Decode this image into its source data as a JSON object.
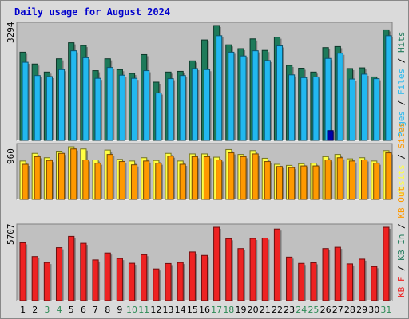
{
  "title": "Daily usage for August 2024",
  "colors": {
    "pages": "#1e7a5a",
    "files": "#22b8f0",
    "hits": "#1e7a5a",
    "visits": "#ffff44",
    "sites": "#ff9900",
    "kbin": "#1e7a5a",
    "kbout": "#ff9900",
    "kbf": "#ee2222",
    "weekend_label": "#2e8b57",
    "weekday_label": "#000000",
    "plot_bg": "#c0c0c0",
    "frame_bg": "#dadada",
    "title": "#0000cc"
  },
  "chart_data": [
    {
      "type": "bar",
      "name": "hits-files-pages",
      "max_label": "3294",
      "ylim": [
        0,
        3294
      ],
      "legend": [
        {
          "text": "Pages",
          "color": "#22b8f0"
        },
        {
          "text": " / ",
          "color": "#000000"
        },
        {
          "text": "Files",
          "color": "#22b8f0"
        },
        {
          "text": " / ",
          "color": "#000000"
        },
        {
          "text": "Hits",
          "color": "#1e7a5a"
        }
      ],
      "series": [
        {
          "name": "Hits",
          "values": [
            2530,
            2190,
            1960,
            2340,
            2800,
            2720,
            2000,
            2340,
            2030,
            1920,
            2460,
            1670,
            1960,
            1980,
            2280,
            2880,
            3294,
            2740,
            2630,
            2910,
            2580,
            2960,
            2150,
            2070,
            1960,
            2660,
            2690,
            2060,
            2080,
            1820,
            3170
          ]
        },
        {
          "name": "Files",
          "values": [
            2240,
            1860,
            1830,
            2030,
            2570,
            2370,
            1780,
            2090,
            1870,
            1780,
            2000,
            1360,
            1770,
            1860,
            2060,
            2030,
            3000,
            2530,
            2420,
            2570,
            2290,
            2710,
            1880,
            1800,
            1820,
            2350,
            2500,
            1760,
            1900,
            1770,
            3000
          ]
        },
        {
          "name": "Pages",
          "values": [
            0,
            0,
            0,
            0,
            0,
            0,
            0,
            0,
            0,
            0,
            0,
            0,
            0,
            0,
            0,
            0,
            0,
            0,
            0,
            0,
            0,
            0,
            0,
            0,
            0,
            280,
            0,
            0,
            0,
            0,
            0
          ]
        }
      ]
    },
    {
      "type": "bar",
      "name": "visits-sites",
      "max_label": "960",
      "ylim": [
        0,
        960
      ],
      "legend": [
        {
          "text": "Visits",
          "color": "#ffff44"
        },
        {
          "text": " / ",
          "color": "#000000"
        },
        {
          "text": "Sites",
          "color": "#ff9900"
        }
      ],
      "series": [
        {
          "name": "Visits",
          "values": [
            700,
            840,
            760,
            880,
            960,
            920,
            720,
            900,
            730,
            700,
            760,
            710,
            840,
            700,
            830,
            830,
            770,
            910,
            820,
            890,
            750,
            640,
            620,
            650,
            660,
            780,
            820,
            740,
            760,
            700,
            890
          ]
        },
        {
          "name": "Sites",
          "values": [
            640,
            780,
            710,
            840,
            920,
            720,
            660,
            820,
            690,
            630,
            700,
            660,
            790,
            640,
            780,
            780,
            720,
            850,
            780,
            830,
            690,
            600,
            580,
            610,
            610,
            720,
            760,
            700,
            720,
            660,
            850
          ]
        }
      ]
    },
    {
      "type": "bar",
      "name": "kbf-kbin-kbout",
      "max_label": "5707",
      "ylim": [
        0,
        5707
      ],
      "legend": [
        {
          "text": "KB F",
          "color": "#ee2222"
        },
        {
          "text": " / ",
          "color": "#000000"
        },
        {
          "text": "KB In",
          "color": "#1e7a5a"
        },
        {
          "text": " / ",
          "color": "#000000"
        },
        {
          "text": "KB Out",
          "color": "#ff9900"
        }
      ],
      "series": [
        {
          "name": "KB F",
          "values": [
            4500,
            3430,
            2970,
            4120,
            5000,
            4460,
            3170,
            3710,
            3280,
            2910,
            3580,
            2470,
            2890,
            2970,
            3790,
            3520,
            5707,
            4820,
            4050,
            4840,
            4870,
            5570,
            3390,
            2900,
            2950,
            4050,
            4150,
            2860,
            3230,
            2650,
            5707
          ]
        }
      ]
    }
  ],
  "days": [
    "1",
    "2",
    "3",
    "4",
    "5",
    "6",
    "7",
    "8",
    "9",
    "10",
    "11",
    "12",
    "13",
    "14",
    "15",
    "16",
    "17",
    "18",
    "19",
    "20",
    "21",
    "22",
    "23",
    "24",
    "25",
    "26",
    "27",
    "28",
    "29",
    "30",
    "31"
  ],
  "weekend_days": [
    3,
    4,
    10,
    11,
    17,
    18,
    24,
    25,
    31
  ]
}
